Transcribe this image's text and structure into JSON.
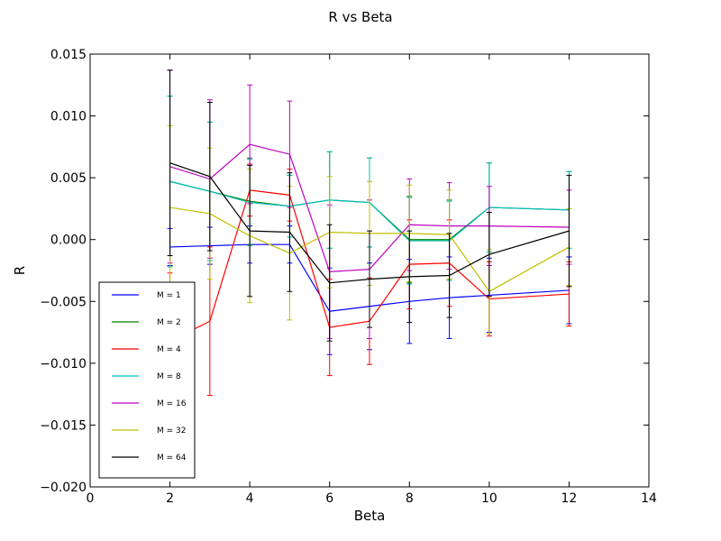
{
  "chart_data": {
    "type": "line",
    "title": "R vs Beta",
    "xlabel": "Beta",
    "ylabel": "R",
    "xlim": [
      0,
      14
    ],
    "ylim": [
      -0.02,
      0.015
    ],
    "xticks": [
      0,
      2,
      4,
      6,
      8,
      10,
      12,
      14
    ],
    "xtick_labels": [
      "0",
      "2",
      "4",
      "6",
      "8",
      "10",
      "12",
      "14"
    ],
    "yticks": [
      -0.02,
      -0.015,
      -0.01,
      -0.005,
      0.0,
      0.005,
      0.01,
      0.015
    ],
    "ytick_labels": [
      "−0.020",
      "−0.015",
      "−0.010",
      "−0.005",
      "0.000",
      "0.005",
      "0.010",
      "0.015"
    ],
    "grid": false,
    "legend_position": "lower-left",
    "error_bars": true,
    "x": [
      2,
      3,
      4,
      5,
      6,
      7,
      8,
      9,
      10,
      12
    ],
    "series": [
      {
        "name": "M = 1",
        "color": "#0000ff",
        "values": [
          -0.0006,
          -0.0005,
          -0.0004,
          -0.0004,
          -0.0058,
          -0.0054,
          -0.005,
          -0.0047,
          -0.0045,
          -0.0041
        ],
        "errors": [
          0.0015,
          0.0015,
          0.0015,
          0.0015,
          0.0035,
          0.0035,
          0.0034,
          0.0033,
          0.003,
          0.0027
        ]
      },
      {
        "name": "M = 2",
        "color": "#008000",
        "values": [
          0.0047,
          0.0039,
          0.0031,
          0.0027,
          0.0032,
          0.003,
          0.0,
          0.0,
          0.0026,
          0.0024
        ],
        "errors": [
          0.0069,
          0.0056,
          0.0035,
          0.0025,
          0.0039,
          0.0036,
          0.0035,
          0.0032,
          0.0036,
          0.0031
        ]
      },
      {
        "name": "M = 4",
        "color": "#ff0000",
        "values": [
          -0.0082,
          -0.0066,
          0.004,
          0.0036,
          -0.0071,
          -0.0066,
          -0.002,
          -0.0019,
          -0.0048,
          -0.0044
        ],
        "errors": [
          0.0055,
          0.006,
          0.0021,
          0.0021,
          0.0039,
          0.0035,
          0.0036,
          0.0035,
          0.003,
          0.0026
        ]
      },
      {
        "name": "M = 8",
        "color": "#00bfbf",
        "values": [
          0.0047,
          0.0039,
          0.003,
          0.0027,
          0.0032,
          0.003,
          -0.0001,
          -0.0001,
          0.0026,
          0.0024
        ],
        "errors": [
          0.0069,
          0.0056,
          0.0035,
          0.0025,
          0.0039,
          0.0036,
          0.0035,
          0.0032,
          0.0036,
          0.0031
        ]
      },
      {
        "name": "M = 16",
        "color": "#bf00bf",
        "values": [
          0.0059,
          0.0049,
          0.0077,
          0.0069,
          -0.0026,
          -0.0024,
          0.0012,
          0.0011,
          0.0011,
          0.001
        ],
        "errors": [
          0.0078,
          0.0064,
          0.0048,
          0.0043,
          0.0054,
          0.0056,
          0.0037,
          0.0035,
          0.0032,
          0.003
        ]
      },
      {
        "name": "M = 32",
        "color": "#bfbf00",
        "values": [
          0.0026,
          0.0021,
          0.0003,
          -0.0011,
          0.0006,
          0.0005,
          0.0005,
          0.0004,
          -0.0042,
          -0.0006
        ],
        "errors": [
          0.0066,
          0.0053,
          0.0054,
          0.0054,
          0.0045,
          0.0042,
          0.0039,
          0.0036,
          0.0034,
          0.0031
        ]
      },
      {
        "name": "M = 64",
        "color": "#000000",
        "values": [
          0.0062,
          0.0051,
          0.0007,
          0.0006,
          -0.0035,
          -0.0032,
          -0.003,
          -0.0029,
          -0.0012,
          0.0007
        ],
        "errors": [
          0.0075,
          0.006,
          0.0053,
          0.0048,
          0.0047,
          0.0039,
          0.0037,
          0.0034,
          0.0034,
          0.0045
        ]
      }
    ]
  }
}
